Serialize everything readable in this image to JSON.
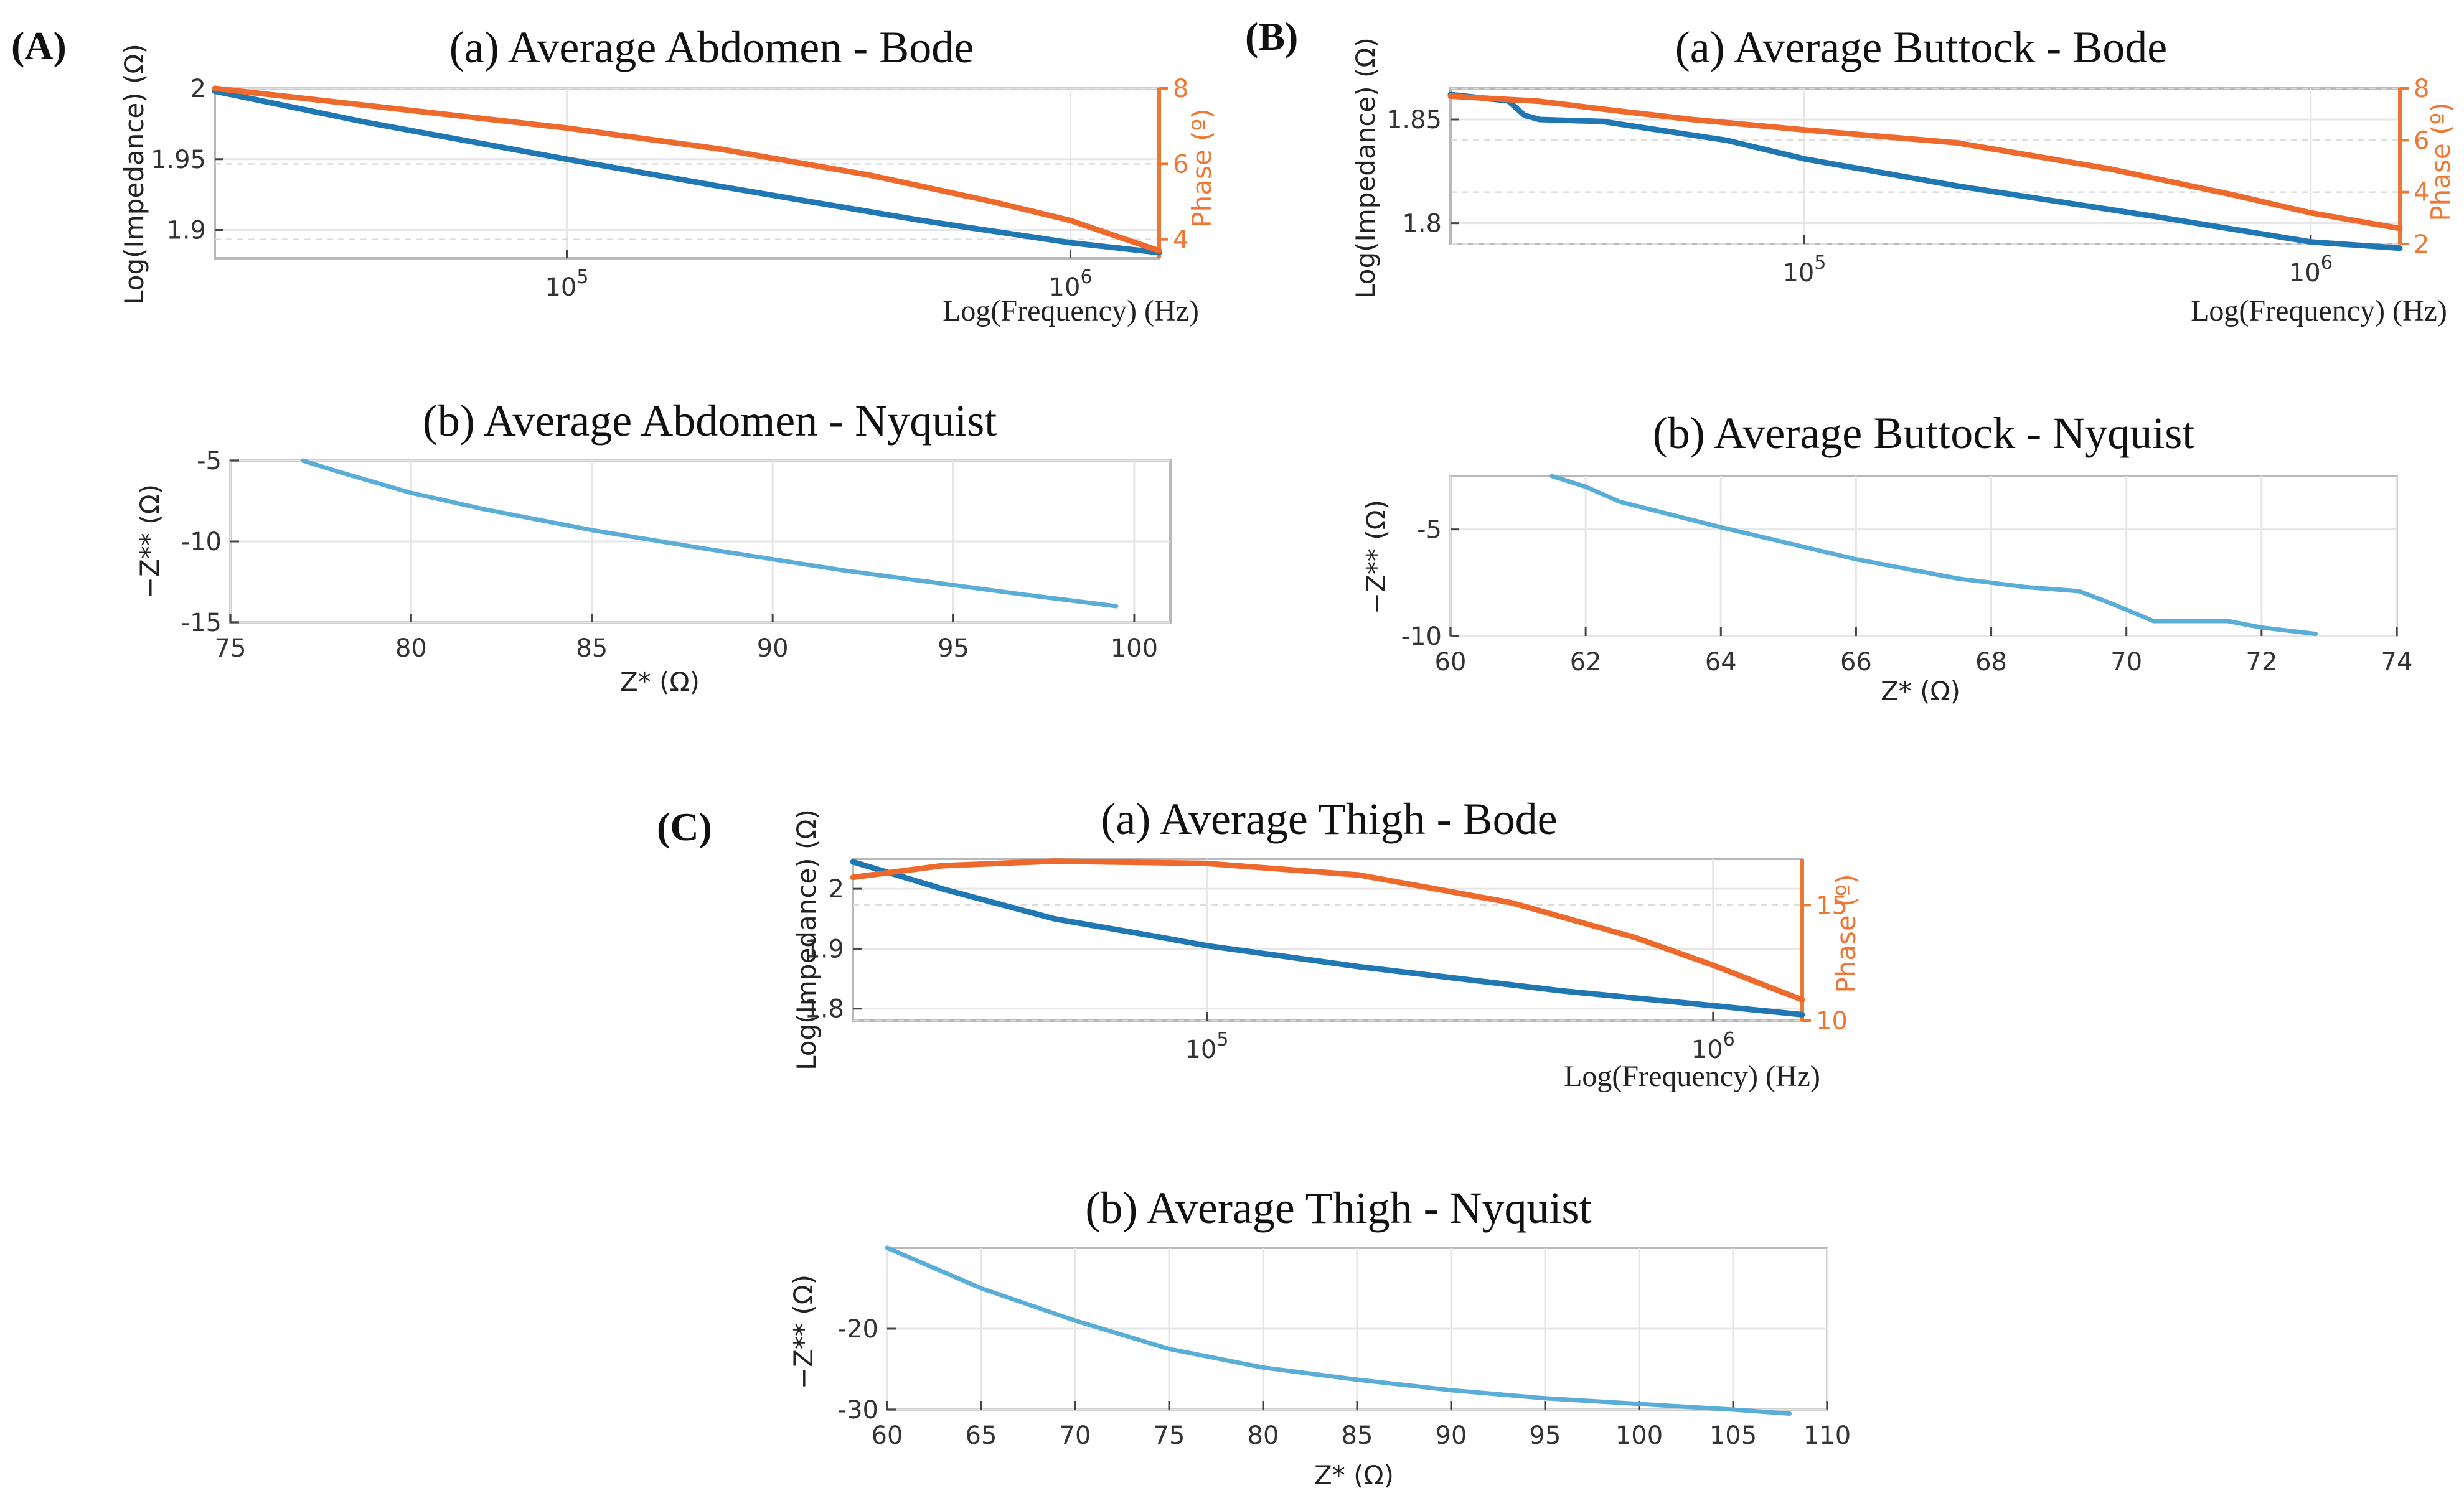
{
  "chart_data": [
    {
      "id": "A-bode",
      "panel_letter": "(A)",
      "type": "line",
      "title": "(a) Average Abdomen - Bode",
      "xlabel": "Log(Frequency) (Hz)",
      "ylabel": "Log(Impedance) (Ω)",
      "y2label": "Phase (º)",
      "xscale": "log",
      "xlim": [
        20000,
        1500000
      ],
      "ylim": [
        1.88,
        2.0
      ],
      "y2lim": [
        3.5,
        8
      ],
      "xticks": [
        {
          "value": 100000,
          "label": "10^5"
        },
        {
          "value": 1000000,
          "label": "10^6"
        }
      ],
      "yticks": [
        {
          "value": 2.0,
          "label": "2"
        },
        {
          "value": 1.95,
          "label": "1.95"
        },
        {
          "value": 1.9,
          "label": "1.9"
        }
      ],
      "y2ticks": [
        {
          "value": 8,
          "label": "8"
        },
        {
          "value": 6,
          "label": "6"
        },
        {
          "value": 4,
          "label": "4"
        }
      ],
      "series": [
        {
          "axis": "left",
          "color": "#1f77b4",
          "x": [
            20000,
            40000,
            100000,
            200000,
            500000,
            1000000,
            1500000
          ],
          "values": [
            1.998,
            1.976,
            1.95,
            1.931,
            1.907,
            1.891,
            1.884
          ]
        },
        {
          "axis": "right",
          "color": "#ee6a2c",
          "x": [
            20000,
            40000,
            100000,
            200000,
            400000,
            700000,
            1000000,
            1500000
          ],
          "values": [
            8.0,
            7.55,
            6.95,
            6.4,
            5.7,
            5.0,
            4.5,
            3.7
          ]
        }
      ]
    },
    {
      "id": "A-nyquist",
      "type": "line",
      "title": "(b) Average Abdomen - Nyquist",
      "xlabel": "Z* (Ω)",
      "ylabel": "−Z** (Ω)",
      "xlim": [
        75,
        101
      ],
      "ylim": [
        -15,
        -5
      ],
      "xticks": [
        {
          "value": 75,
          "label": "75"
        },
        {
          "value": 80,
          "label": "80"
        },
        {
          "value": 85,
          "label": "85"
        },
        {
          "value": 90,
          "label": "90"
        },
        {
          "value": 95,
          "label": "95"
        },
        {
          "value": 100,
          "label": "100"
        }
      ],
      "yticks": [
        {
          "value": -5,
          "label": "-5"
        },
        {
          "value": -10,
          "label": "-10"
        },
        {
          "value": -15,
          "label": "-15"
        }
      ],
      "series": [
        {
          "color": "#5aadd6",
          "x": [
            77,
            78,
            80,
            82,
            85,
            88,
            90,
            92,
            95,
            97,
            99.5
          ],
          "values": [
            -5.0,
            -5.7,
            -7.0,
            -8.0,
            -9.3,
            -10.4,
            -11.1,
            -11.8,
            -12.7,
            -13.3,
            -14.0
          ]
        }
      ]
    },
    {
      "id": "B-bode",
      "panel_letter": "(B)",
      "type": "line",
      "title": "(a) Average Buttock - Bode",
      "xlabel": "Log(Frequency) (Hz)",
      "ylabel": "Log(Impedance) (Ω)",
      "y2label": "Phase (º)",
      "xscale": "log",
      "xlim": [
        20000,
        1500000
      ],
      "ylim": [
        1.79,
        1.865
      ],
      "y2lim": [
        2,
        8
      ],
      "xticks": [
        {
          "value": 100000,
          "label": "10^5"
        },
        {
          "value": 1000000,
          "label": "10^6"
        }
      ],
      "yticks": [
        {
          "value": 1.85,
          "label": "1.85"
        },
        {
          "value": 1.8,
          "label": "1.8"
        }
      ],
      "y2ticks": [
        {
          "value": 8,
          "label": "8"
        },
        {
          "value": 6,
          "label": "6"
        },
        {
          "value": 4,
          "label": "4"
        },
        {
          "value": 2,
          "label": "2"
        }
      ],
      "series": [
        {
          "axis": "left",
          "color": "#1f77b4",
          "x": [
            20000,
            26000,
            28000,
            30000,
            40000,
            70000,
            100000,
            200000,
            500000,
            1000000,
            1500000
          ],
          "values": [
            1.862,
            1.859,
            1.852,
            1.85,
            1.849,
            1.84,
            1.831,
            1.818,
            1.803,
            1.791,
            1.788
          ]
        },
        {
          "axis": "right",
          "color": "#ee6a2c",
          "x": [
            20000,
            30000,
            40000,
            60000,
            100000,
            200000,
            400000,
            700000,
            1000000,
            1500000
          ],
          "values": [
            7.7,
            7.5,
            7.2,
            6.8,
            6.4,
            5.9,
            4.9,
            3.9,
            3.2,
            2.6
          ]
        }
      ]
    },
    {
      "id": "B-nyquist",
      "type": "line",
      "title": "(b) Average Buttock - Nyquist",
      "xlabel": "Z* (Ω)",
      "ylabel": "−Z** (Ω)",
      "xlim": [
        60,
        74
      ],
      "ylim": [
        -10,
        -2.5
      ],
      "xticks": [
        {
          "value": 60,
          "label": "60"
        },
        {
          "value": 62,
          "label": "62"
        },
        {
          "value": 64,
          "label": "64"
        },
        {
          "value": 66,
          "label": "66"
        },
        {
          "value": 68,
          "label": "68"
        },
        {
          "value": 70,
          "label": "70"
        },
        {
          "value": 72,
          "label": "72"
        },
        {
          "value": 74,
          "label": "74"
        }
      ],
      "yticks": [
        {
          "value": -5,
          "label": "-5"
        },
        {
          "value": -10,
          "label": "-10"
        }
      ],
      "series": [
        {
          "color": "#5aadd6",
          "x": [
            61.5,
            62.0,
            62.5,
            64,
            66,
            67.5,
            68.5,
            69.3,
            69.8,
            70.4,
            71.0,
            71.5,
            72.0,
            72.8
          ],
          "values": [
            -2.5,
            -3.0,
            -3.7,
            -4.9,
            -6.4,
            -7.3,
            -7.7,
            -7.9,
            -8.5,
            -9.3,
            -9.3,
            -9.3,
            -9.6,
            -9.9
          ]
        }
      ]
    },
    {
      "id": "C-bode",
      "panel_letter": "(C)",
      "type": "line",
      "title": "(a) Average Thigh - Bode",
      "xlabel": "Log(Frequency) (Hz)",
      "ylabel": "Log(Impedance) (Ω)",
      "y2label": "Phase (º)",
      "xscale": "log",
      "xlim": [
        20000,
        1500000
      ],
      "ylim": [
        1.78,
        2.05
      ],
      "y2lim": [
        10,
        17
      ],
      "xticks": [
        {
          "value": 100000,
          "label": "10^5"
        },
        {
          "value": 1000000,
          "label": "10^6"
        }
      ],
      "yticks": [
        {
          "value": 2.0,
          "label": "2"
        },
        {
          "value": 1.9,
          "label": "1.9"
        },
        {
          "value": 1.8,
          "label": "1.8"
        }
      ],
      "y2ticks": [
        {
          "value": 15,
          "label": "15"
        },
        {
          "value": 10,
          "label": "10"
        }
      ],
      "series": [
        {
          "axis": "left",
          "color": "#1f77b4",
          "x": [
            20000,
            30000,
            50000,
            80000,
            100000,
            200000,
            500000,
            1000000,
            1500000
          ],
          "values": [
            2.045,
            2.0,
            1.95,
            1.92,
            1.905,
            1.87,
            1.83,
            1.805,
            1.79
          ]
        },
        {
          "axis": "right",
          "color": "#ee6a2c",
          "x": [
            20000,
            30000,
            50000,
            100000,
            200000,
            400000,
            700000,
            1000000,
            1500000
          ],
          "values": [
            16.2,
            16.7,
            16.9,
            16.8,
            16.3,
            15.1,
            13.6,
            12.4,
            10.9
          ]
        }
      ]
    },
    {
      "id": "C-nyquist",
      "type": "line",
      "title": "(b) Average Thigh - Nyquist",
      "xlabel": "Z* (Ω)",
      "ylabel": "−Z** (Ω)",
      "xlim": [
        60,
        110
      ],
      "ylim": [
        -30,
        -10
      ],
      "xticks": [
        {
          "value": 60,
          "label": "60"
        },
        {
          "value": 65,
          "label": "65"
        },
        {
          "value": 70,
          "label": "70"
        },
        {
          "value": 75,
          "label": "75"
        },
        {
          "value": 80,
          "label": "80"
        },
        {
          "value": 85,
          "label": "85"
        },
        {
          "value": 90,
          "label": "90"
        },
        {
          "value": 95,
          "label": "95"
        },
        {
          "value": 100,
          "label": "100"
        },
        {
          "value": 105,
          "label": "105"
        },
        {
          "value": 110,
          "label": "110"
        }
      ],
      "yticks": [
        {
          "value": -20,
          "label": "-20"
        },
        {
          "value": -30,
          "label": "-30"
        }
      ],
      "series": [
        {
          "color": "#5aadd6",
          "x": [
            60,
            62,
            65,
            70,
            75,
            80,
            85,
            90,
            95,
            100,
            105,
            108
          ],
          "values": [
            -10.0,
            -12.0,
            -15.0,
            -19.0,
            -22.5,
            -24.8,
            -26.3,
            -27.6,
            -28.6,
            -29.3,
            -30.0,
            -30.5
          ]
        }
      ]
    }
  ]
}
